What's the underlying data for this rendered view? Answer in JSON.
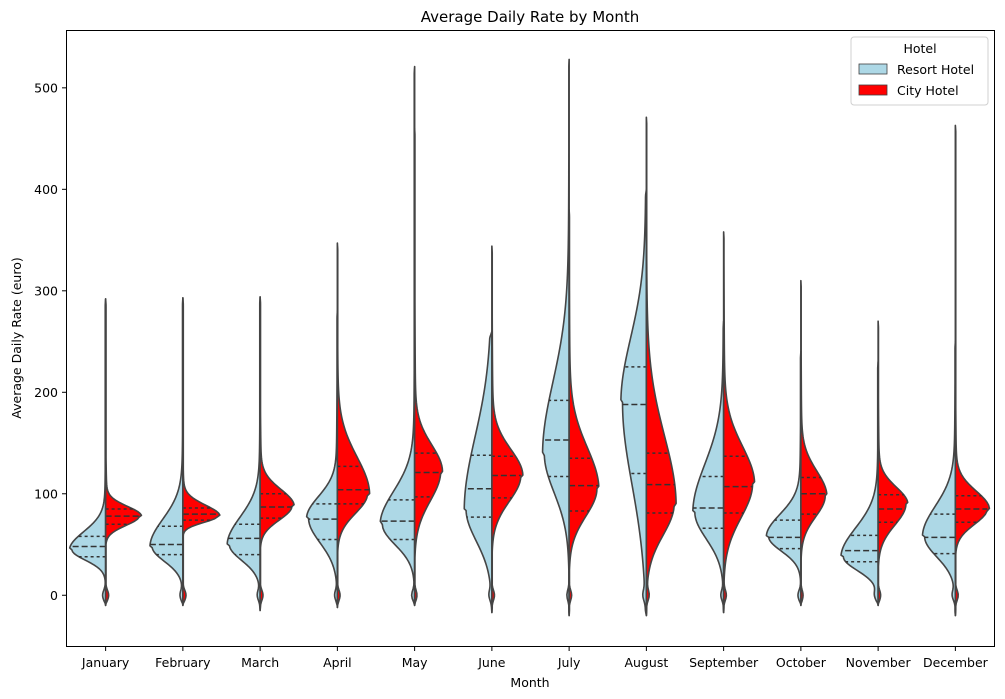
{
  "chart_data": {
    "type": "violin",
    "title": "Average Daily Rate by Month",
    "xlabel": "Month",
    "ylabel": "Average Daily Rate (euro)",
    "ylim": [
      -50,
      556
    ],
    "yticks": [
      0,
      100,
      200,
      300,
      400,
      500
    ],
    "categories": [
      "January",
      "February",
      "March",
      "April",
      "May",
      "June",
      "July",
      "August",
      "September",
      "October",
      "November",
      "December"
    ],
    "legend": {
      "title": "Hotel",
      "placement": "top-right"
    },
    "grid": false,
    "series": [
      {
        "name": "Resort Hotel",
        "color": "#add8e6",
        "side": "left",
        "min": [
          -10,
          -10,
          -15,
          -12,
          -10,
          -17,
          -20,
          -20,
          -17,
          -10,
          -10,
          -20
        ],
        "max": [
          292,
          293,
          294,
          280,
          521,
          260,
          528,
          400,
          270,
          240,
          230,
          250
        ],
        "q1": [
          38,
          40,
          40,
          55,
          55,
          77,
          117,
          120,
          66,
          46,
          33,
          41
        ],
        "median": [
          48,
          50,
          56,
          75,
          73,
          105,
          153,
          188,
          86,
          57,
          44,
          57
        ],
        "q3": [
          58,
          68,
          70,
          90,
          94,
          138,
          192,
          225,
          117,
          74,
          59,
          80
        ],
        "mode": [
          45,
          48,
          50,
          76,
          70,
          85,
          140,
          190,
          82,
          58,
          38,
          58
        ],
        "mode_width": [
          0.68,
          0.62,
          0.62,
          0.58,
          0.65,
          0.52,
          0.5,
          0.48,
          0.58,
          0.65,
          0.7,
          0.62
        ]
      },
      {
        "name": "City Hotel",
        "color": "#ff0000",
        "side": "right",
        "min": [
          -10,
          -10,
          -15,
          -12,
          -10,
          -17,
          -20,
          -20,
          -17,
          -10,
          -10,
          -20
        ],
        "max": [
          292,
          293,
          294,
          347,
          460,
          344,
          380,
          471,
          358,
          310,
          270,
          463
        ],
        "q1": [
          70,
          74,
          76,
          90,
          97,
          96,
          83,
          81,
          81,
          80,
          72,
          72
        ],
        "median": [
          78,
          80,
          87,
          104,
          121,
          118,
          108,
          109,
          107,
          100,
          85,
          85
        ],
        "q3": [
          85,
          86,
          100,
          127,
          140,
          137,
          135,
          140,
          137,
          116,
          99,
          98
        ],
        "mode": [
          78,
          78,
          88,
          100,
          122,
          118,
          105,
          90,
          110,
          98,
          90,
          85
        ],
        "mode_width": [
          0.58,
          0.6,
          0.55,
          0.52,
          0.45,
          0.5,
          0.48,
          0.48,
          0.5,
          0.42,
          0.48,
          0.55
        ]
      }
    ]
  }
}
